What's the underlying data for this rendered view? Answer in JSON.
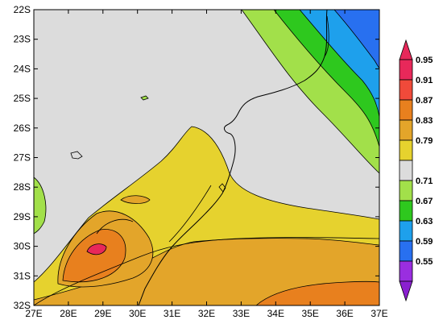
{
  "map": {
    "type": "contour-map",
    "lon_range": [
      27,
      37
    ],
    "lat_range": [
      -32,
      -22
    ],
    "lon_ticks": [
      "27E",
      "28E",
      "29E",
      "30E",
      "31E",
      "32E",
      "33E",
      "34E",
      "35E",
      "36E",
      "37E"
    ],
    "lat_ticks": [
      "22S",
      "23S",
      "24S",
      "25S",
      "26S",
      "27S",
      "28S",
      "29S",
      "30S",
      "31S",
      "32S"
    ],
    "background_color": "#dcdcdc",
    "coastline_color": "#000000",
    "colorbar": {
      "levels": [
        {
          "label": "0.95",
          "color": "#e8285a"
        },
        {
          "label": "0.91",
          "color": "#f04a3a"
        },
        {
          "label": "0.87",
          "color": "#e8801e"
        },
        {
          "label": "0.83",
          "color": "#e3a52a"
        },
        {
          "label": "0.79",
          "color": "#e6d22e"
        },
        {
          "label": "",
          "color": "#dcdcdc"
        },
        {
          "label": "0.71",
          "color": "#a2e04a"
        },
        {
          "label": "0.67",
          "color": "#2ec81e"
        },
        {
          "label": "0.63",
          "color": "#1ea0ec"
        },
        {
          "label": "0.59",
          "color": "#2870f0"
        },
        {
          "label": "0.55",
          "color": "#9a2ee0"
        }
      ],
      "top_arrow_color": "#e8285a",
      "bottom_arrow_color": "#8a20d0"
    }
  }
}
